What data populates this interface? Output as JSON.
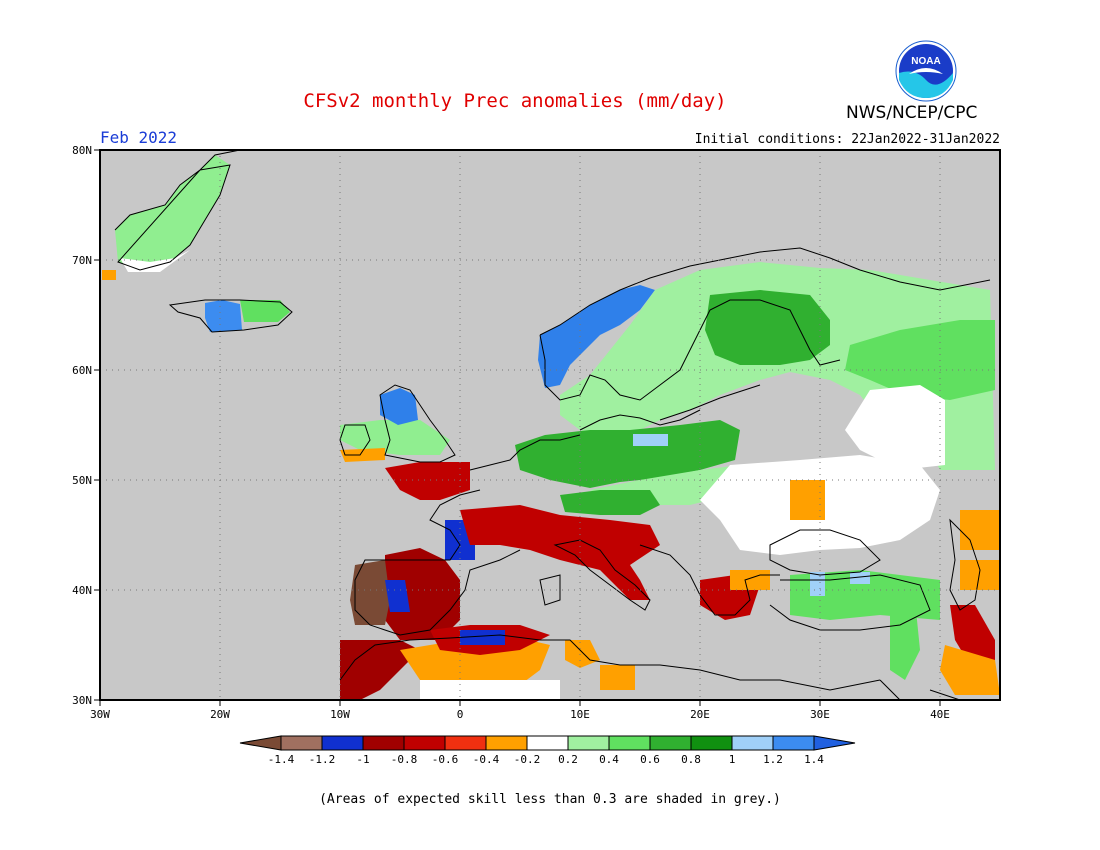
{
  "header": {
    "title": "CFSv2 monthly Prec anomalies (mm/day)",
    "agency": "NWS/NCEP/CPC",
    "logo_text": "NOAA",
    "target_month": "Feb 2022",
    "initial_conditions": "Initial conditions: 22Jan2022-31Jan2022"
  },
  "map": {
    "lon_range": [
      -30,
      45
    ],
    "lat_range": [
      30,
      80
    ],
    "lon_ticks": [
      "30W",
      "20W",
      "10W",
      "0",
      "10E",
      "20E",
      "30E",
      "40E"
    ],
    "lat_ticks": [
      "80N",
      "70N",
      "60N",
      "50N",
      "40N",
      "30N"
    ],
    "background_color": "#c8c8c8"
  },
  "legend": {
    "colors": [
      "#7a4a35",
      "#a07060",
      "#1030d0",
      "#a00000",
      "#c00000",
      "#f03010",
      "#ffa000",
      "#ffffff",
      "#a0f0a0",
      "#60e060",
      "#30b030",
      "#109010",
      "#a0d0f8",
      "#3c8cf0",
      "#2060e0"
    ],
    "tick_labels": [
      "-1.4",
      "-1.2",
      "-1",
      "-0.8",
      "-0.6",
      "-0.4",
      "-0.2",
      "0.2",
      "0.4",
      "0.6",
      "0.8",
      "1",
      "1.2",
      "1.4"
    ]
  },
  "footnote": "(Areas of expected skill less than 0.3 are shaded in grey.)"
}
